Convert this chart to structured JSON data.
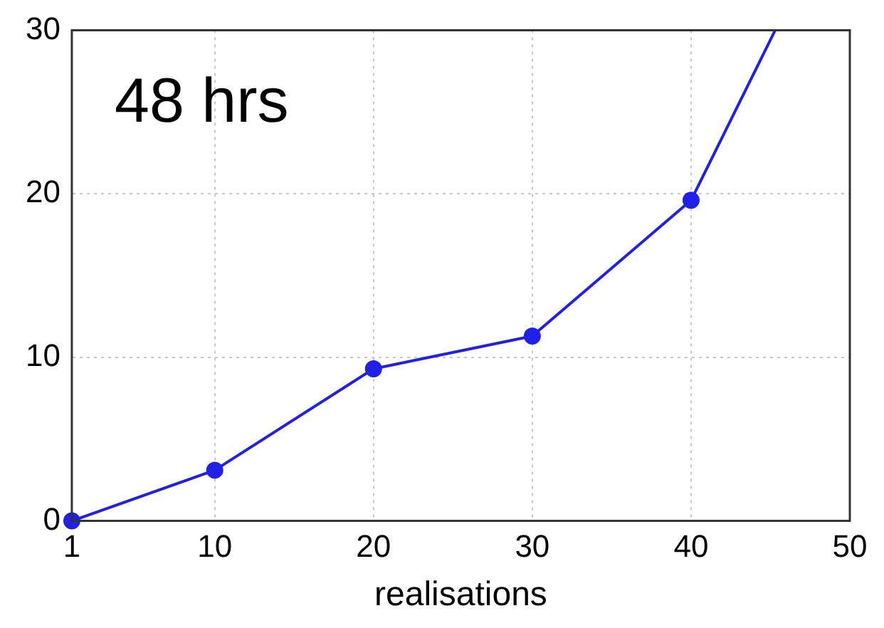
{
  "chart_data": {
    "type": "line",
    "xlabel": "realisations",
    "annotations": [
      "48 hrs"
    ],
    "series": [
      {
        "color": "#2020e6",
        "x": [
          1,
          10,
          20,
          30,
          40,
          45.3
        ],
        "values": [
          0,
          3.1,
          9.3,
          11.3,
          19.6,
          30
        ]
      }
    ],
    "xlim": [
      1,
      50
    ],
    "xticks": [
      1,
      10,
      20,
      30,
      40,
      50
    ],
    "ylim": [
      0,
      30
    ],
    "yticks": [
      0,
      10,
      20,
      30
    ],
    "grid": true,
    "legend": false,
    "marker": "circle",
    "line_style": "solid"
  }
}
